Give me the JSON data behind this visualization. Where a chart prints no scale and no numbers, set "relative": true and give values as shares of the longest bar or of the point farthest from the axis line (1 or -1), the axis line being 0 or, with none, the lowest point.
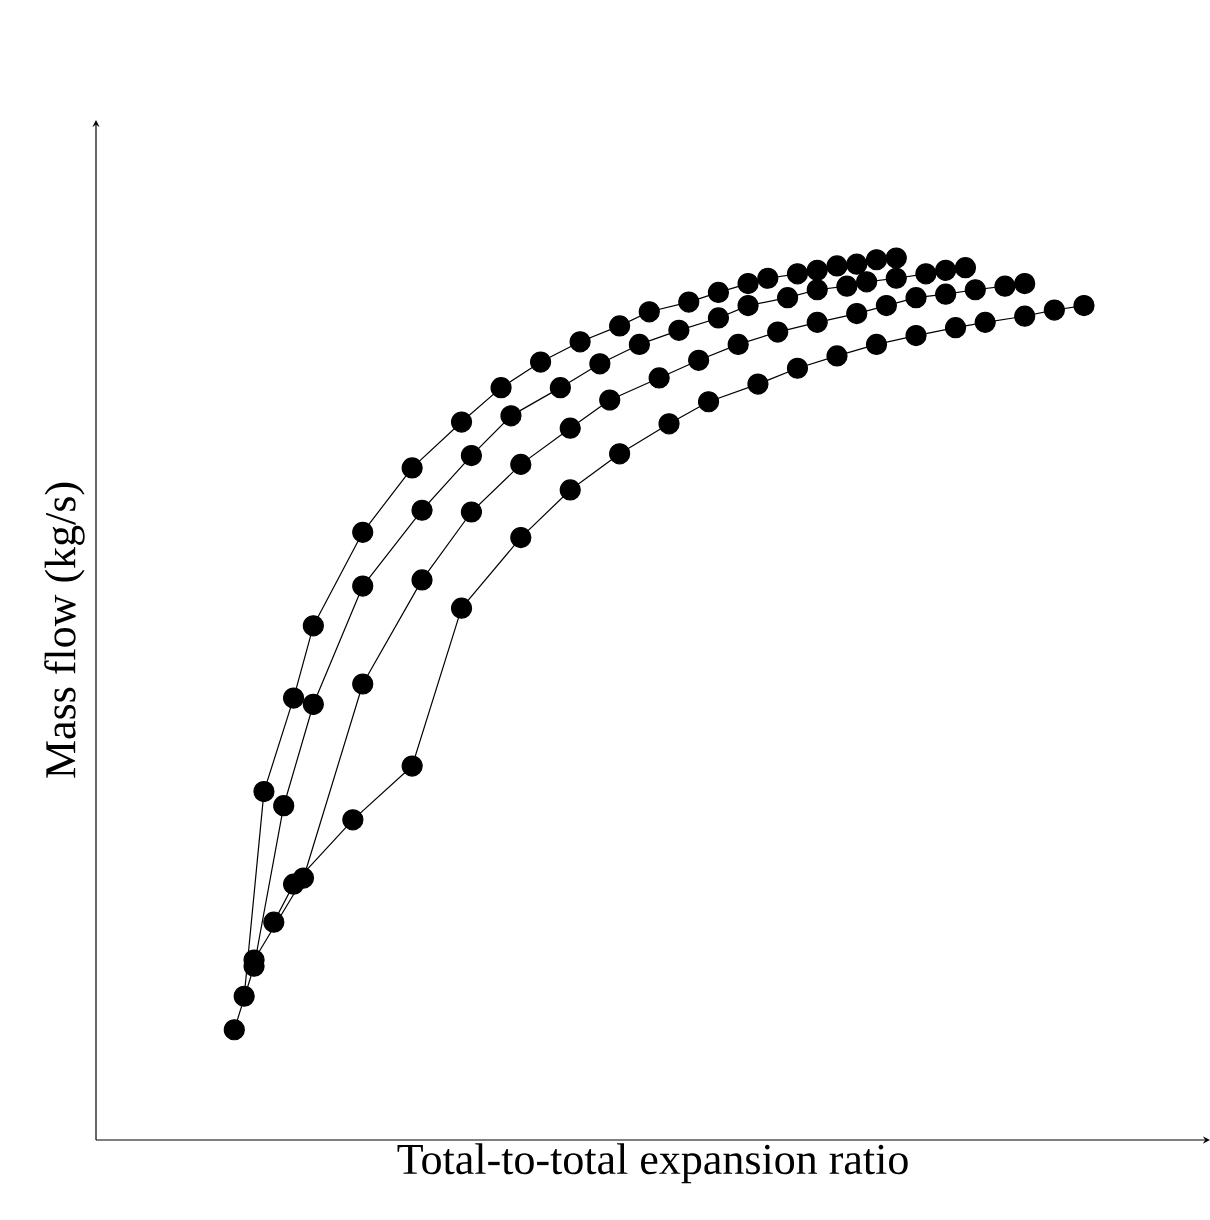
{
  "chart_data": {
    "type": "line",
    "xlabel": "Total-to-total expansion ratio",
    "ylabel": "Mass flow (kg/s)",
    "relative": true,
    "marker": "circle",
    "line_style": "solid",
    "categories": [
      null,
      null,
      null,
      null,
      null,
      null,
      null,
      null,
      null,
      null,
      null,
      null,
      null,
      null,
      null,
      null,
      null,
      null,
      null,
      null,
      null,
      null,
      null,
      null,
      null,
      null,
      null,
      null,
      null,
      null,
      null,
      null,
      null,
      null,
      null,
      null,
      null,
      null,
      null,
      null,
      null,
      null,
      null,
      null,
      null,
      null,
      null,
      null,
      null,
      null,
      null,
      null,
      null,
      null,
      null,
      null,
      null,
      null,
      null,
      null,
      null,
      null,
      null,
      null,
      null,
      null,
      null,
      null,
      null,
      null,
      null,
      null,
      null,
      null,
      null,
      null,
      null,
      null,
      null,
      null,
      null,
      null,
      null,
      null,
      null,
      null,
      null,
      null,
      null,
      null,
      null,
      null,
      null,
      null,
      null,
      null,
      null,
      null,
      null,
      null,
      null
    ],
    "series": [
      {
        "color": "#000000",
        "values": [
          null,
          null,
          null,
          null,
          null,
          null,
          null,
          null,
          null,
          null,
          null,
          null,
          null,
          null,
          null,
          0.163,
          null,
          0.395,
          null,
          null,
          0.501,
          null,
          0.583,
          null,
          null,
          null,
          null,
          0.689,
          null,
          null,
          null,
          null,
          0.762,
          null,
          null,
          null,
          null,
          0.814,
          null,
          null,
          null,
          0.853,
          null,
          null,
          null,
          0.882,
          null,
          null,
          null,
          0.905,
          null,
          null,
          null,
          0.923,
          null,
          null,
          0.939,
          null,
          null,
          null,
          0.95,
          null,
          null,
          0.961,
          null,
          null,
          0.971,
          null,
          0.977,
          null,
          null,
          0.982,
          null,
          0.986,
          null,
          0.991,
          null,
          0.993,
          null,
          0.998,
          null,
          1.0,
          null,
          null,
          null,
          null,
          null,
          null,
          null,
          null,
          null,
          null,
          null,
          null,
          null,
          null,
          null,
          null,
          null,
          null,
          null
        ]
      },
      {
        "color": "#000000",
        "values": [
          null,
          null,
          null,
          null,
          null,
          null,
          null,
          null,
          null,
          null,
          null,
          null,
          null,
          null,
          0.125,
          null,
          0.197,
          null,
          null,
          0.379,
          null,
          null,
          0.494,
          null,
          null,
          null,
          null,
          0.628,
          null,
          null,
          null,
          null,
          null,
          0.714,
          null,
          null,
          null,
          null,
          0.776,
          null,
          null,
          null,
          0.821,
          null,
          null,
          null,
          null,
          0.853,
          null,
          null,
          null,
          0.88,
          null,
          null,
          null,
          0.902,
          null,
          null,
          null,
          0.918,
          null,
          null,
          null,
          0.932,
          null,
          null,
          0.946,
          null,
          null,
          null,
          0.955,
          null,
          null,
          0.964,
          null,
          null,
          0.968,
          null,
          0.973,
          null,
          null,
          0.977,
          null,
          null,
          0.982,
          null,
          0.986,
          null,
          0.989,
          null,
          null,
          null,
          null,
          null,
          null,
          null,
          null,
          null,
          null,
          null,
          null
        ]
      },
      {
        "color": "#000000",
        "values": [
          null,
          null,
          null,
          null,
          null,
          null,
          null,
          null,
          null,
          null,
          null,
          null,
          null,
          null,
          null,
          null,
          0.204,
          null,
          null,
          null,
          null,
          0.297,
          null,
          null,
          null,
          null,
          null,
          0.517,
          null,
          null,
          null,
          null,
          null,
          0.635,
          null,
          null,
          null,
          null,
          0.712,
          null,
          null,
          null,
          null,
          0.766,
          null,
          null,
          null,
          null,
          0.807,
          null,
          null,
          null,
          0.839,
          null,
          null,
          null,
          null,
          0.864,
          null,
          null,
          null,
          0.884,
          null,
          null,
          null,
          0.902,
          null,
          null,
          null,
          0.916,
          null,
          null,
          null,
          0.927,
          null,
          null,
          null,
          0.937,
          null,
          null,
          0.946,
          null,
          null,
          0.955,
          null,
          null,
          0.959,
          null,
          null,
          0.964,
          null,
          null,
          0.968,
          null,
          0.971,
          null,
          null,
          null,
          null,
          null,
          null
        ]
      },
      {
        "color": "#000000",
        "values": [
          null,
          null,
          null,
          null,
          null,
          null,
          null,
          null,
          null,
          null,
          null,
          null,
          null,
          null,
          null,
          null,
          null,
          null,
          0.247,
          null,
          0.29,
          null,
          null,
          null,
          null,
          null,
          0.363,
          null,
          null,
          null,
          null,
          null,
          0.424,
          null,
          null,
          null,
          null,
          0.603,
          null,
          null,
          null,
          null,
          null,
          0.683,
          null,
          null,
          null,
          null,
          0.737,
          null,
          null,
          null,
          null,
          0.778,
          null,
          null,
          null,
          null,
          0.812,
          null,
          null,
          null,
          0.837,
          null,
          null,
          null,
          null,
          0.857,
          null,
          null,
          null,
          0.875,
          null,
          null,
          null,
          0.889,
          null,
          null,
          null,
          0.902,
          null,
          null,
          null,
          0.912,
          null,
          null,
          null,
          0.921,
          null,
          null,
          0.927,
          null,
          null,
          null,
          0.934,
          null,
          null,
          0.941,
          null,
          null,
          0.946
        ]
      }
    ]
  }
}
